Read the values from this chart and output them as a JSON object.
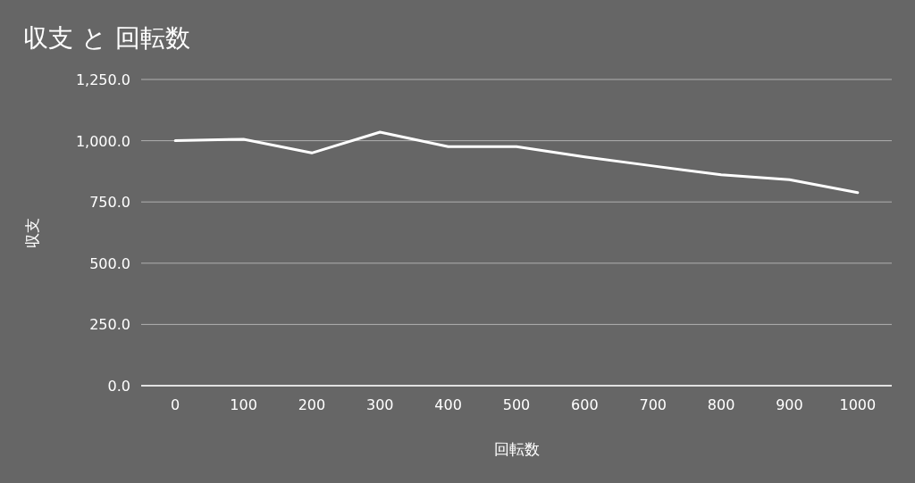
{
  "chart_data": {
    "type": "line",
    "title": "収支 と 回転数",
    "xlabel": "回転数",
    "ylabel": "収支",
    "categories": [
      "0",
      "100",
      "200",
      "300",
      "400",
      "500",
      "600",
      "700",
      "800",
      "900",
      "1000"
    ],
    "series": [
      {
        "color": "#ffffff",
        "values": [
          1000,
          1006,
          950,
          1035,
          976,
          976,
          934,
          897,
          861,
          841,
          788
        ]
      }
    ],
    "ylim": [
      0,
      1250
    ],
    "yticks": [
      {
        "value": 0,
        "label": "0.0"
      },
      {
        "value": 250,
        "label": "250.0"
      },
      {
        "value": 500,
        "label": "500.0"
      },
      {
        "value": 750,
        "label": "750.0"
      },
      {
        "value": 1000,
        "label": "1,000.0"
      },
      {
        "value": 1250,
        "label": "1,250.0"
      }
    ],
    "grid": "y",
    "marker": "none",
    "line_style": "solid"
  }
}
